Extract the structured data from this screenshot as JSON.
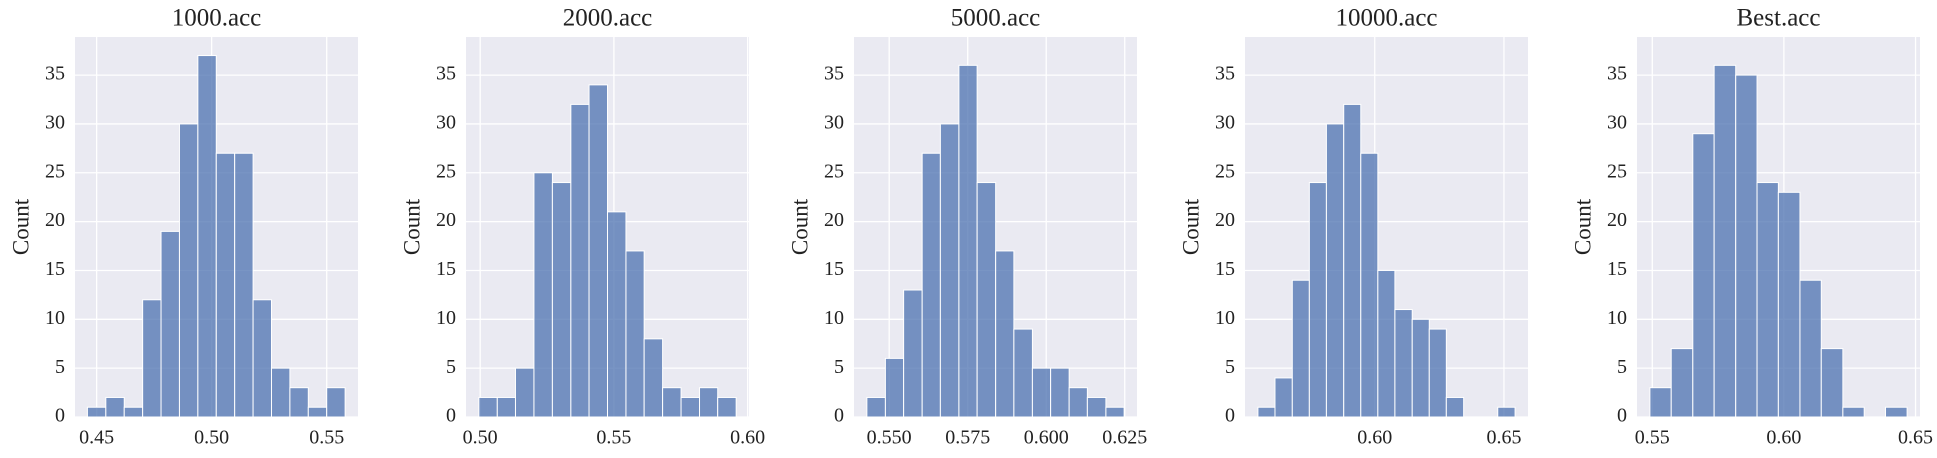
{
  "chart_data": [
    {
      "type": "histogram",
      "title": "1000.acc",
      "ylabel": "Count",
      "color": "#4c72b0",
      "grid": true,
      "bins": [
        0.446,
        0.454,
        0.462,
        0.47,
        0.478,
        0.486,
        0.494,
        0.502,
        0.51,
        0.518,
        0.526,
        0.534,
        0.542,
        0.55,
        0.558
      ],
      "counts": [
        1,
        2,
        1,
        12,
        19,
        30,
        37,
        27,
        27,
        12,
        5,
        3,
        1,
        3
      ],
      "xlim": [
        0.4406,
        0.5636
      ],
      "xticks": [
        {
          "value": 0.45,
          "label": "0.45"
        },
        {
          "value": 0.5,
          "label": "0.50"
        },
        {
          "value": 0.55,
          "label": "0.55"
        }
      ],
      "ylim": [
        0,
        38.9
      ],
      "yticks": [
        0,
        5,
        10,
        15,
        20,
        25,
        30,
        35
      ]
    },
    {
      "type": "histogram",
      "title": "2000.acc",
      "ylabel": "Count",
      "color": "#4c72b0",
      "grid": true,
      "bins": [
        0.4995,
        0.5064,
        0.5132,
        0.5201,
        0.527,
        0.5339,
        0.5407,
        0.5476,
        0.5545,
        0.5613,
        0.5682,
        0.5751,
        0.582,
        0.5888,
        0.5957
      ],
      "counts": [
        2,
        2,
        5,
        25,
        24,
        32,
        34,
        21,
        17,
        8,
        3,
        2,
        3,
        2
      ],
      "xlim": [
        0.4947,
        0.6005
      ],
      "xticks": [
        {
          "value": 0.5,
          "label": "0.50"
        },
        {
          "value": 0.55,
          "label": "0.55"
        },
        {
          "value": 0.6,
          "label": "0.60"
        }
      ],
      "ylim": [
        0,
        38.9
      ],
      "yticks": [
        0,
        5,
        10,
        15,
        20,
        25,
        30,
        35
      ]
    },
    {
      "type": "histogram",
      "title": "5000.acc",
      "ylabel": "Count",
      "color": "#4c72b0",
      "grid": true,
      "bins": [
        0.5429,
        0.5488,
        0.5546,
        0.5605,
        0.5663,
        0.5722,
        0.578,
        0.5839,
        0.5897,
        0.5956,
        0.6014,
        0.6073,
        0.6131,
        0.619,
        0.6248
      ],
      "counts": [
        2,
        6,
        13,
        27,
        30,
        36,
        24,
        17,
        9,
        5,
        5,
        3,
        2,
        1
      ],
      "xlim": [
        0.5388,
        0.6289
      ],
      "xticks": [
        {
          "value": 0.55,
          "label": "0.550"
        },
        {
          "value": 0.575,
          "label": "0.575"
        },
        {
          "value": 0.6,
          "label": "0.600"
        },
        {
          "value": 0.625,
          "label": "0.625"
        }
      ],
      "ylim": [
        0,
        38.9
      ],
      "yticks": [
        0,
        5,
        10,
        15,
        20,
        25,
        30,
        35
      ]
    },
    {
      "type": "histogram",
      "title": "10000.acc",
      "ylabel": "Count",
      "color": "#4c72b0",
      "grid": true,
      "bins": [
        0.5548,
        0.5614,
        0.5681,
        0.5747,
        0.5813,
        0.588,
        0.5946,
        0.6012,
        0.6078,
        0.6145,
        0.6211,
        0.6277,
        0.6344,
        0.641,
        0.6476,
        0.6543
      ],
      "counts": [
        1,
        4,
        14,
        24,
        30,
        32,
        27,
        15,
        11,
        10,
        9,
        2,
        0,
        0,
        1
      ],
      "xlim": [
        0.5498,
        0.6593
      ],
      "xticks": [
        {
          "value": 0.6,
          "label": "0.60"
        },
        {
          "value": 0.65,
          "label": "0.65"
        }
      ],
      "ylim": [
        0,
        38.9
      ],
      "yticks": [
        0,
        5,
        10,
        15,
        20,
        25,
        30,
        35
      ]
    },
    {
      "type": "histogram",
      "title": "Best.acc",
      "ylabel": "Count",
      "color": "#4c72b0",
      "grid": true,
      "bins": [
        0.5491,
        0.5572,
        0.5654,
        0.5735,
        0.5817,
        0.5898,
        0.5979,
        0.6061,
        0.6142,
        0.6224,
        0.6305,
        0.6386,
        0.6468
      ],
      "counts": [
        3,
        7,
        29,
        36,
        35,
        24,
        23,
        14,
        7,
        1,
        0,
        1
      ],
      "xlim": [
        0.5442,
        0.6517
      ],
      "xticks": [
        {
          "value": 0.55,
          "label": "0.55"
        },
        {
          "value": 0.6,
          "label": "0.60"
        },
        {
          "value": 0.65,
          "label": "0.65"
        }
      ],
      "ylim": [
        0,
        38.9
      ],
      "yticks": [
        0,
        5,
        10,
        15,
        20,
        25,
        30,
        35
      ]
    }
  ]
}
